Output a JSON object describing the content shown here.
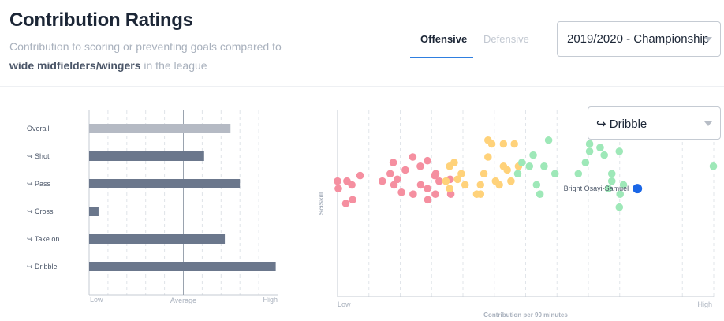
{
  "header": {
    "title": "Contribution Ratings",
    "subtitle_pre": "Contribution to scoring or preventing goals compared to",
    "subtitle_bold": "wide midfielders/wingers",
    "subtitle_post": "in the league"
  },
  "tabs": [
    {
      "label": "Offensive",
      "active": true
    },
    {
      "label": "Defensive",
      "active": false
    }
  ],
  "season_select": {
    "value": "2019/2020 - Championship"
  },
  "metric_select": {
    "value": "↪ Dribble"
  },
  "bar_chart": {
    "axis": {
      "low": "Low",
      "average": "Average",
      "high": "High"
    },
    "average": 0.5,
    "items": [
      {
        "label": "Overall",
        "value": 0.75,
        "color": "#b5bac4"
      },
      {
        "label": "↪ Shot",
        "value": 0.61,
        "color": "#6b778c"
      },
      {
        "label": "↪ Pass",
        "value": 0.8,
        "color": "#6b778c"
      },
      {
        "label": "↪ Cross",
        "value": 0.05,
        "color": "#6b778c"
      },
      {
        "label": "↪ Take on",
        "value": 0.72,
        "color": "#6b778c"
      },
      {
        "label": "↪ Dribble",
        "value": 0.99,
        "color": "#6b778c"
      }
    ]
  },
  "chart_data": {
    "type": "scatter",
    "xlabel": "Contribution per 90 minutes",
    "ylabel": "SciSkill",
    "x_tick_labels": {
      "low": "Low",
      "high": "High"
    },
    "grid": true,
    "highlight": {
      "name": "Bright Osayi-Samuel",
      "x": 0.797,
      "y": 0.58,
      "color": "#1a66e6"
    },
    "groups": [
      {
        "color": "#f58fa0",
        "points": [
          [
            0.0,
            0.62
          ],
          [
            0.002,
            0.58
          ],
          [
            0.038,
            0.6
          ],
          [
            0.06,
            0.65
          ],
          [
            0.04,
            0.52
          ],
          [
            0.119,
            0.62
          ],
          [
            0.15,
            0.6
          ],
          [
            0.17,
            0.56
          ],
          [
            0.201,
            0.55
          ],
          [
            0.221,
            0.6
          ],
          [
            0.24,
            0.52
          ],
          [
            0.148,
            0.72
          ],
          [
            0.14,
            0.66
          ],
          [
            0.159,
            0.63
          ],
          [
            0.18,
            0.68
          ],
          [
            0.2,
            0.75
          ],
          [
            0.22,
            0.7
          ],
          [
            0.239,
            0.58
          ],
          [
            0.258,
            0.65
          ],
          [
            0.27,
            0.62
          ],
          [
            0.299,
            0.63
          ],
          [
            0.26,
            0.55
          ],
          [
            0.301,
            0.55
          ],
          [
            0.261,
            0.66
          ],
          [
            0.239,
            0.73
          ],
          [
            0.025,
            0.62
          ],
          [
            0.022,
            0.5
          ]
        ]
      },
      {
        "color": "#ffd27a",
        "points": [
          [
            0.288,
            0.62
          ],
          [
            0.298,
            0.58
          ],
          [
            0.319,
            0.63
          ],
          [
            0.329,
            0.66
          ],
          [
            0.31,
            0.72
          ],
          [
            0.298,
            0.7
          ],
          [
            0.339,
            0.6
          ],
          [
            0.37,
            0.55
          ],
          [
            0.38,
            0.6
          ],
          [
            0.389,
            0.66
          ],
          [
            0.4,
            0.75
          ],
          [
            0.41,
            0.82
          ],
          [
            0.4,
            0.84
          ],
          [
            0.42,
            0.62
          ],
          [
            0.43,
            0.6
          ],
          [
            0.441,
            0.7
          ],
          [
            0.451,
            0.68
          ],
          [
            0.461,
            0.62
          ],
          [
            0.38,
            0.55
          ],
          [
            0.47,
            0.82
          ],
          [
            0.481,
            0.7
          ],
          [
            0.441,
            0.82
          ]
        ]
      },
      {
        "color": "#9ee8b8",
        "points": [
          [
            0.479,
            0.66
          ],
          [
            0.49,
            0.72
          ],
          [
            0.51,
            0.7
          ],
          [
            0.52,
            0.76
          ],
          [
            0.529,
            0.6
          ],
          [
            0.549,
            0.7
          ],
          [
            0.561,
            0.84
          ],
          [
            0.578,
            0.66
          ],
          [
            0.64,
            0.66
          ],
          [
            0.659,
            0.72
          ],
          [
            0.67,
            0.78
          ],
          [
            0.67,
            0.82
          ],
          [
            0.698,
            0.8
          ],
          [
            0.709,
            0.76
          ],
          [
            0.72,
            0.58
          ],
          [
            0.729,
            0.62
          ],
          [
            0.729,
            0.66
          ],
          [
            0.749,
            0.78
          ],
          [
            0.749,
            0.48
          ],
          [
            0.76,
            0.6
          ],
          [
            0.751,
            0.55
          ],
          [
            0.538,
            0.55
          ],
          [
            0.999,
            0.7
          ]
        ]
      }
    ]
  }
}
